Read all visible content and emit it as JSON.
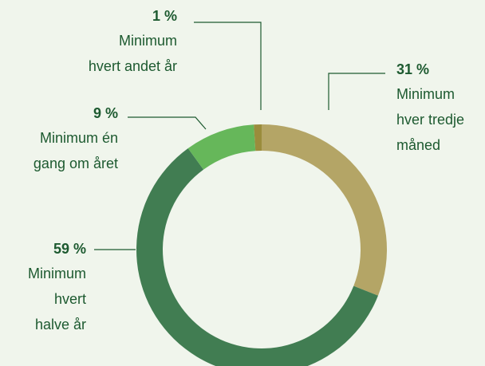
{
  "chart_data": {
    "type": "donut",
    "categories": [
      "Minimum\nhver tredje\nmåned",
      "Minimum\nhvert\nhalve år",
      "Minimum én\ngang om året",
      "Minimum\nhvert andet år"
    ],
    "values": [
      31,
      59,
      9,
      1
    ],
    "value_labels": [
      "31 %",
      "59 %",
      "9 %",
      "1 %"
    ],
    "colors": [
      "#b4a566",
      "#417d52",
      "#66b75a",
      "#9a8c3c"
    ]
  }
}
